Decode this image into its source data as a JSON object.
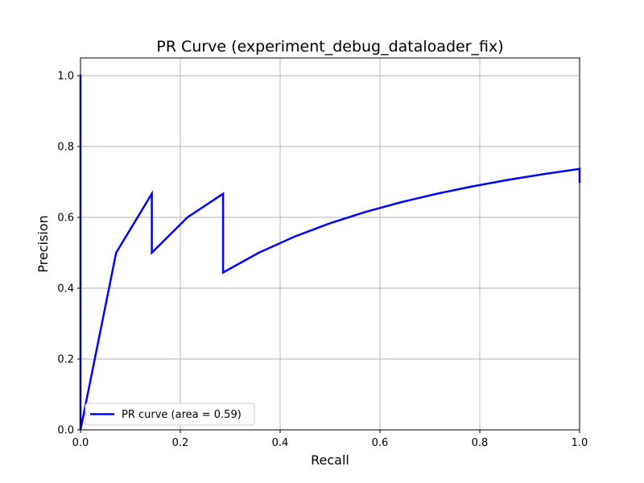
{
  "chart_data": {
    "type": "line",
    "title": "PR Curve (experiment_debug_dataloader_fix)",
    "xlabel": "Recall",
    "ylabel": "Precision",
    "xlim": [
      0.0,
      1.0
    ],
    "ylim": [
      0.0,
      1.05
    ],
    "x_ticks": [
      "0.0",
      "0.2",
      "0.4",
      "0.6",
      "0.8",
      "1.0"
    ],
    "y_ticks": [
      "0.0",
      "0.2",
      "0.4",
      "0.6",
      "0.8",
      "1.0"
    ],
    "grid": true,
    "legend_position": "lower-left",
    "series": [
      {
        "name": "PR curve (area = 0.59)",
        "color": "#0000ff",
        "x": [
          0.0,
          0.0,
          0.0714,
          0.1429,
          0.1429,
          0.2143,
          0.2857,
          0.2857,
          0.3571,
          0.4286,
          0.5,
          0.5714,
          0.6429,
          0.7143,
          0.7857,
          0.8571,
          0.9286,
          1.0,
          1.0
        ],
        "y": [
          1.0,
          0.0,
          0.5,
          0.6667,
          0.5,
          0.6,
          0.6667,
          0.4444,
          0.5,
          0.5455,
          0.5833,
          0.6154,
          0.6429,
          0.6667,
          0.6875,
          0.7059,
          0.7222,
          0.7368,
          0.7
        ]
      }
    ]
  }
}
